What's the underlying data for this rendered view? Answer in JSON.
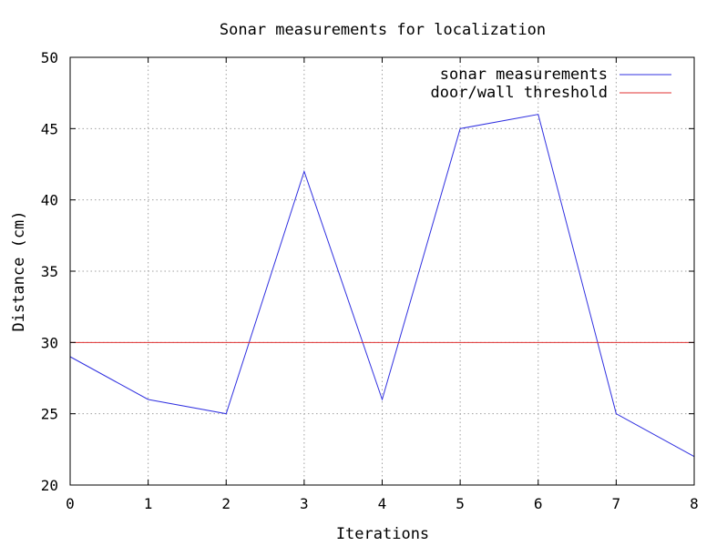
{
  "chart_data": {
    "type": "line",
    "title": "Sonar measurements for localization",
    "xlabel": "Iterations",
    "ylabel": "Distance (cm)",
    "xlim": [
      0,
      8
    ],
    "ylim": [
      20,
      50
    ],
    "xticks": [
      0,
      1,
      2,
      3,
      4,
      5,
      6,
      7,
      8
    ],
    "yticks": [
      20,
      25,
      30,
      35,
      40,
      45,
      50
    ],
    "grid": true,
    "legend_position": "top-right",
    "series": [
      {
        "name": "sonar measurements",
        "color": "#3030e0",
        "x": [
          0,
          1,
          2,
          3,
          4,
          5,
          6,
          7,
          8
        ],
        "y": [
          29,
          26,
          25,
          42,
          26,
          45,
          46,
          25,
          22
        ]
      },
      {
        "name": "door/wall threshold",
        "color": "#e03030",
        "x": [
          0,
          8
        ],
        "y": [
          30,
          30
        ]
      }
    ]
  }
}
